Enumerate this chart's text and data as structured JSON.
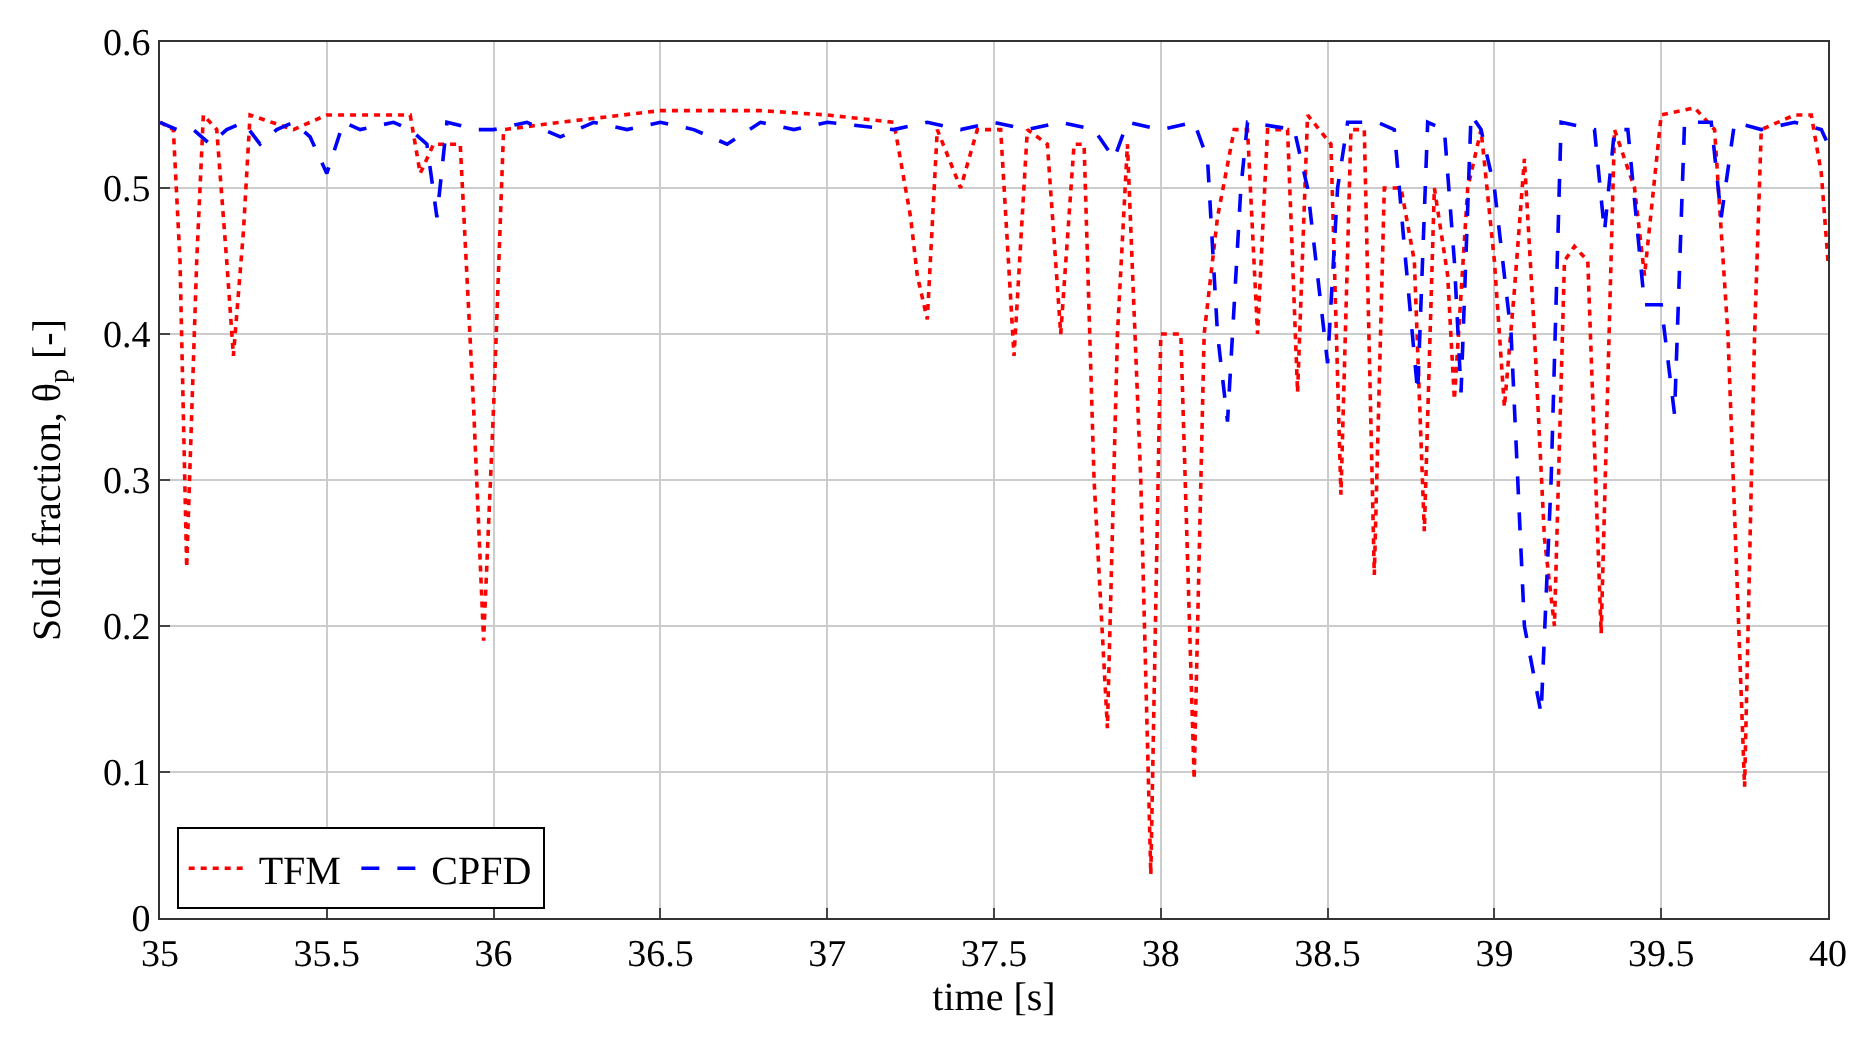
{
  "chart_data": {
    "type": "line",
    "xlabel": "time [s]",
    "ylabel": "Solid fraction, θ$_{p}$ [-]",
    "xlim": [
      35,
      40
    ],
    "xticks": [
      35,
      35.5,
      36,
      36.5,
      37,
      37.5,
      38,
      38.5,
      39,
      39.5,
      40
    ],
    "ylim": [
      0,
      0.6
    ],
    "yticks": [
      0,
      0.1,
      0.2,
      0.3,
      0.4,
      0.5,
      0.6
    ],
    "grid": true,
    "legend": "bottom left",
    "series": [
      {
        "name": "TFM",
        "color": "#ff0000",
        "line_style": "dotted",
        "x": [
          35.0,
          35.04,
          35.06,
          35.08,
          35.11,
          35.13,
          35.17,
          35.2,
          35.22,
          35.25,
          35.27,
          35.4,
          35.5,
          35.75,
          35.78,
          35.82,
          35.9,
          35.94,
          35.97,
          36.0,
          36.03,
          36.2,
          36.5,
          36.8,
          37.0,
          37.2,
          37.25,
          37.27,
          37.3,
          37.33,
          37.4,
          37.45,
          37.52,
          37.56,
          37.6,
          37.66,
          37.7,
          37.74,
          37.77,
          37.8,
          37.84,
          37.87,
          37.9,
          37.94,
          37.97,
          38.0,
          38.03,
          38.06,
          38.1,
          38.13,
          38.17,
          38.22,
          38.26,
          38.29,
          38.32,
          38.38,
          38.41,
          38.44,
          38.51,
          38.54,
          38.57,
          38.61,
          38.64,
          38.67,
          38.72,
          38.76,
          38.79,
          38.82,
          38.86,
          38.88,
          38.92,
          38.96,
          39.0,
          39.03,
          39.06,
          39.09,
          39.12,
          39.15,
          39.18,
          39.21,
          39.24,
          39.28,
          39.32,
          39.36,
          39.42,
          39.45,
          39.5,
          39.6,
          39.66,
          39.7,
          39.75,
          39.78,
          39.8,
          39.9,
          39.95,
          39.98,
          40.0
        ],
        "values": [
          0.545,
          0.54,
          0.45,
          0.24,
          0.45,
          0.55,
          0.54,
          0.45,
          0.385,
          0.47,
          0.55,
          0.54,
          0.55,
          0.55,
          0.51,
          0.53,
          0.53,
          0.35,
          0.19,
          0.35,
          0.54,
          0.545,
          0.553,
          0.553,
          0.55,
          0.545,
          0.48,
          0.44,
          0.41,
          0.54,
          0.5,
          0.54,
          0.54,
          0.385,
          0.54,
          0.53,
          0.4,
          0.53,
          0.53,
          0.3,
          0.13,
          0.4,
          0.53,
          0.3,
          0.03,
          0.4,
          0.4,
          0.4,
          0.095,
          0.4,
          0.48,
          0.54,
          0.54,
          0.4,
          0.54,
          0.54,
          0.36,
          0.55,
          0.53,
          0.29,
          0.54,
          0.54,
          0.235,
          0.5,
          0.5,
          0.45,
          0.265,
          0.5,
          0.44,
          0.355,
          0.5,
          0.54,
          0.45,
          0.35,
          0.43,
          0.52,
          0.4,
          0.26,
          0.2,
          0.45,
          0.46,
          0.45,
          0.195,
          0.54,
          0.5,
          0.44,
          0.55,
          0.555,
          0.54,
          0.4,
          0.09,
          0.4,
          0.54,
          0.55,
          0.55,
          0.51,
          0.45
        ]
      },
      {
        "name": "CPFD",
        "color": "#0000ff",
        "line_style": "dashed",
        "x": [
          35.0,
          35.05,
          35.1,
          35.15,
          35.2,
          35.25,
          35.3,
          35.35,
          35.4,
          35.45,
          35.5,
          35.55,
          35.6,
          35.7,
          35.75,
          35.8,
          35.83,
          35.86,
          35.95,
          36.0,
          36.1,
          36.2,
          36.3,
          36.4,
          36.5,
          36.6,
          36.7,
          36.8,
          36.9,
          37.0,
          37.2,
          37.3,
          37.4,
          37.5,
          37.6,
          37.7,
          37.8,
          37.86,
          37.9,
          38.0,
          38.1,
          38.14,
          38.17,
          38.2,
          38.24,
          38.26,
          38.4,
          38.44,
          38.5,
          38.53,
          38.56,
          38.65,
          38.7,
          38.73,
          38.77,
          38.8,
          38.85,
          38.88,
          38.9,
          38.93,
          38.96,
          39.0,
          39.05,
          39.09,
          39.14,
          39.17,
          39.2,
          39.3,
          39.33,
          39.36,
          39.4,
          39.45,
          39.5,
          39.54,
          39.57,
          39.65,
          39.68,
          39.72,
          39.8,
          39.9,
          39.98,
          40.0
        ],
        "values": [
          0.545,
          0.54,
          0.54,
          0.53,
          0.54,
          0.545,
          0.53,
          0.54,
          0.545,
          0.535,
          0.51,
          0.545,
          0.54,
          0.545,
          0.54,
          0.53,
          0.48,
          0.545,
          0.54,
          0.54,
          0.545,
          0.535,
          0.545,
          0.54,
          0.545,
          0.54,
          0.53,
          0.545,
          0.54,
          0.545,
          0.54,
          0.545,
          0.54,
          0.545,
          0.54,
          0.545,
          0.54,
          0.52,
          0.545,
          0.54,
          0.545,
          0.52,
          0.4,
          0.34,
          0.5,
          0.545,
          0.54,
          0.5,
          0.38,
          0.5,
          0.545,
          0.545,
          0.54,
          0.46,
          0.36,
          0.545,
          0.54,
          0.45,
          0.36,
          0.55,
          0.54,
          0.5,
          0.4,
          0.2,
          0.14,
          0.3,
          0.545,
          0.54,
          0.47,
          0.54,
          0.54,
          0.42,
          0.42,
          0.345,
          0.545,
          0.545,
          0.48,
          0.545,
          0.54,
          0.545,
          0.54,
          0.53
        ]
      }
    ]
  }
}
